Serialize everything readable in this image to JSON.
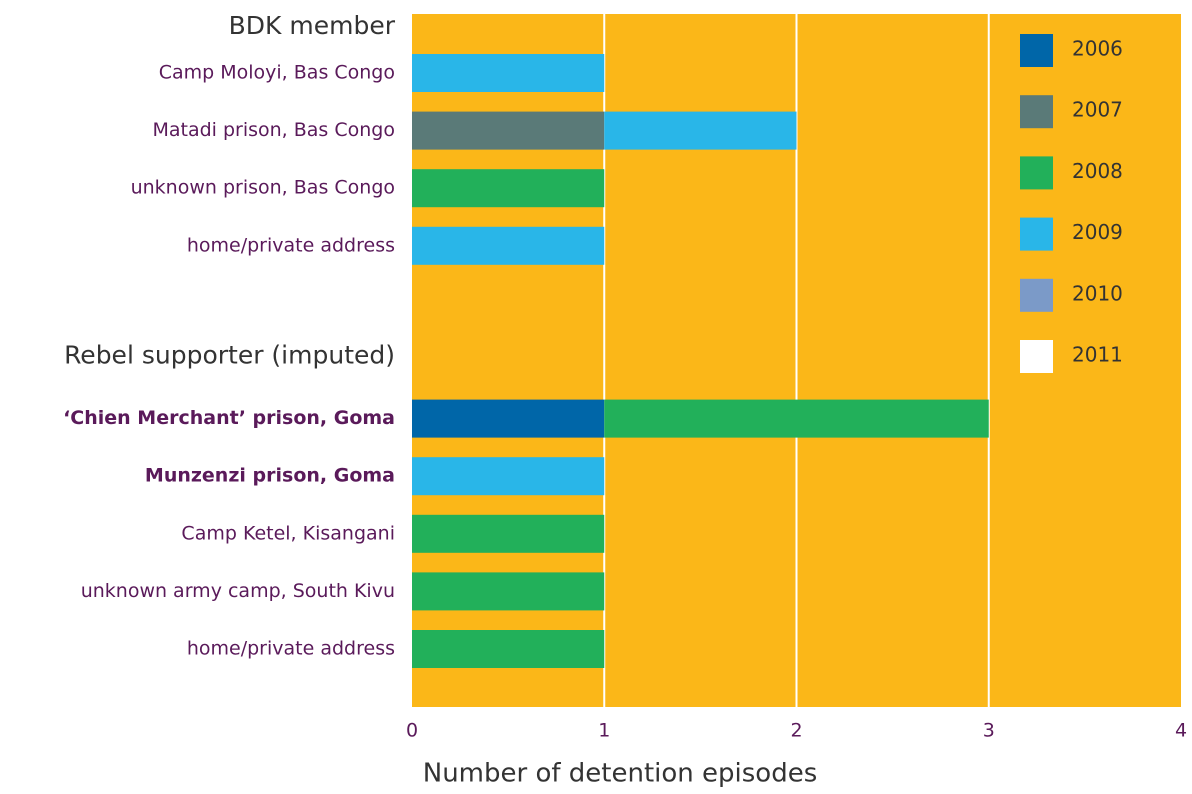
{
  "chart_data": {
    "type": "stacked-bar-horizontal",
    "xlabel": "Number of detention episodes",
    "groups": [
      {
        "name": "BDK member",
        "categories": [
          "Camp Moloyi, Bas Congo",
          "Matadi prison, Bas Congo",
          "unknown prison, Bas Congo",
          "home/private address"
        ]
      },
      {
        "name": "Rebel supporter (imputed)",
        "categories": [
          "‘Chien Merchant’ prison, Goma",
          "Munzenzi prison, Goma",
          "Camp Ketel, Kisangani",
          "unknown army camp, South Kivu",
          "home/private address"
        ]
      }
    ],
    "series": [
      {
        "name": "2006",
        "color": "#0066a8",
        "values": [
          0,
          0,
          0,
          0,
          1,
          0,
          0,
          0,
          0
        ]
      },
      {
        "name": "2007",
        "color": "#5a7a78",
        "values": [
          0,
          1,
          0,
          0,
          0,
          0,
          0,
          0,
          0
        ]
      },
      {
        "name": "2008",
        "color": "#22b05a",
        "values": [
          0,
          0,
          1,
          0,
          2,
          0,
          1,
          1,
          1
        ]
      },
      {
        "name": "2009",
        "color": "#29b6e8",
        "values": [
          1,
          1,
          0,
          1,
          0,
          1,
          0,
          0,
          0
        ]
      },
      {
        "name": "2010",
        "color": "#7b9ac8",
        "values": [
          0,
          0,
          0,
          0,
          0,
          0,
          0,
          0,
          0
        ]
      },
      {
        "name": "2011",
        "color": "#ffffff",
        "values": [
          0,
          0,
          0,
          0,
          0,
          0,
          0,
          0,
          0
        ]
      }
    ],
    "xlim": [
      0,
      4
    ],
    "xticks": [
      0,
      1,
      2,
      3,
      4
    ],
    "grid": true,
    "background": "#fbb718",
    "legend": "top-right"
  }
}
